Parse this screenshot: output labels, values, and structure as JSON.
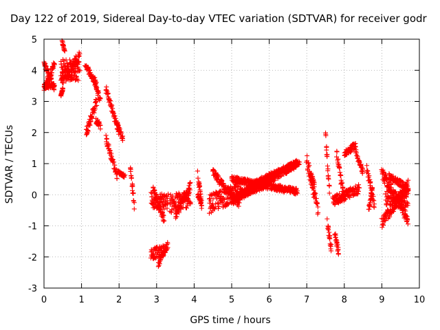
{
  "chart_data": {
    "type": "scatter",
    "title": "Day 122 of 2019, Sidereal Day-to-day VTEC variation (SDTVAR) for receiver godr",
    "xlabel": "GPS time / hours",
    "ylabel": "SDTVAR / TECUs",
    "xlim": [
      0,
      10
    ],
    "ylim": [
      -3,
      5
    ],
    "x_ticks": [
      "0",
      "1",
      "2",
      "3",
      "4",
      "5",
      "6",
      "7",
      "8",
      "9",
      "10"
    ],
    "y_ticks": [
      "-3",
      "-2",
      "-1",
      "0",
      "1",
      "2",
      "3",
      "4",
      "5"
    ],
    "grid": true,
    "marker": "+",
    "color": "#ff0000",
    "series": [
      {
        "name": "SDTVAR",
        "segments": [
          {
            "t0": 0.0,
            "t1": 0.28,
            "v0": 3.4,
            "v1": 4.2,
            "spread": 0.25
          },
          {
            "t0": 0.0,
            "t1": 0.28,
            "v0": 4.2,
            "v1": 3.4,
            "spread": 0.25
          },
          {
            "t0": 0.0,
            "t1": 0.28,
            "v0": 3.45,
            "v1": 3.5,
            "spread": 0.1
          },
          {
            "t0": 0.45,
            "t1": 0.95,
            "v0": 4.0,
            "v1": 4.0,
            "spread": 0.7
          },
          {
            "t0": 0.45,
            "t1": 0.95,
            "v0": 3.7,
            "v1": 4.4,
            "spread": 0.4
          },
          {
            "t0": 0.48,
            "t1": 0.55,
            "v0": 4.95,
            "v1": 4.6,
            "spread": 0.1
          },
          {
            "t0": 0.45,
            "t1": 0.5,
            "v0": 3.2,
            "v1": 3.4,
            "spread": 0.1
          },
          {
            "t0": 1.1,
            "t1": 1.4,
            "v0": 4.2,
            "v1": 3.5,
            "spread": 0.2
          },
          {
            "t0": 1.12,
            "t1": 1.4,
            "v0": 2.0,
            "v1": 3.0,
            "spread": 0.3
          },
          {
            "t0": 1.35,
            "t1": 1.5,
            "v0": 3.7,
            "v1": 3.0,
            "spread": 0.25
          },
          {
            "t0": 1.38,
            "t1": 1.5,
            "v0": 2.4,
            "v1": 2.2,
            "spread": 0.2
          },
          {
            "t0": 1.65,
            "t1": 2.0,
            "v0": 3.4,
            "v1": 2.0,
            "spread": 0.25
          },
          {
            "t0": 1.65,
            "t1": 1.95,
            "v0": 1.8,
            "v1": 0.6,
            "spread": 0.25
          },
          {
            "t0": 1.95,
            "t1": 2.1,
            "v0": 2.3,
            "v1": 1.8,
            "spread": 0.15
          },
          {
            "t0": 1.95,
            "t1": 2.15,
            "v0": 0.75,
            "v1": 0.6,
            "spread": 0.1
          },
          {
            "t0": 2.3,
            "t1": 2.4,
            "v0": 0.9,
            "v1": -0.3,
            "spread": 0.25
          },
          {
            "t0": 2.85,
            "t1": 3.3,
            "v0": -0.2,
            "v1": -0.2,
            "spread": 0.55
          },
          {
            "t0": 2.9,
            "t1": 3.2,
            "v0": 0.2,
            "v1": -0.8,
            "spread": 0.25
          },
          {
            "t0": 2.85,
            "t1": 3.2,
            "v0": -1.9,
            "v1": -1.8,
            "spread": 0.35
          },
          {
            "t0": 3.05,
            "t1": 3.3,
            "v0": -2.2,
            "v1": -1.6,
            "spread": 0.2
          },
          {
            "t0": 3.35,
            "t1": 3.9,
            "v0": -0.3,
            "v1": -0.1,
            "spread": 0.6
          },
          {
            "t0": 3.5,
            "t1": 3.9,
            "v0": -0.7,
            "v1": 0.3,
            "spread": 0.3
          },
          {
            "t0": 4.1,
            "t1": 4.2,
            "v0": 0.6,
            "v1": -0.3,
            "spread": 0.25
          },
          {
            "t0": 4.1,
            "t1": 4.2,
            "v0": 0.0,
            "v1": -0.4,
            "spread": 0.15
          },
          {
            "t0": 4.4,
            "t1": 5.2,
            "v0": -0.3,
            "v1": 0.1,
            "spread": 0.6
          },
          {
            "t0": 4.5,
            "t1": 5.2,
            "v0": 0.7,
            "v1": -0.3,
            "spread": 0.25
          },
          {
            "t0": 5.0,
            "t1": 6.75,
            "v0": -0.2,
            "v1": 1.0,
            "spread": 0.25
          },
          {
            "t0": 5.0,
            "t1": 6.75,
            "v0": 0.5,
            "v1": 0.1,
            "spread": 0.2
          },
          {
            "t0": 5.5,
            "t1": 6.8,
            "v0": 0.3,
            "v1": 1.05,
            "spread": 0.2
          },
          {
            "t0": 5.1,
            "t1": 6.0,
            "v0": 0.0,
            "v1": 0.4,
            "spread": 0.3
          },
          {
            "t0": 7.0,
            "t1": 7.3,
            "v0": 1.1,
            "v1": -0.5,
            "spread": 0.4
          },
          {
            "t0": 7.1,
            "t1": 7.2,
            "v0": 0.6,
            "v1": 0.4,
            "spread": 0.3
          },
          {
            "t0": 7.5,
            "t1": 7.6,
            "v0": 1.9,
            "v1": 0.2,
            "spread": 0.3
          },
          {
            "t0": 7.55,
            "t1": 7.65,
            "v0": -0.9,
            "v1": -1.7,
            "spread": 0.3
          },
          {
            "t0": 7.75,
            "t1": 7.85,
            "v0": -1.2,
            "v1": -1.9,
            "spread": 0.25
          },
          {
            "t0": 7.8,
            "t1": 8.0,
            "v0": 1.3,
            "v1": -0.2,
            "spread": 0.3
          },
          {
            "t0": 7.7,
            "t1": 8.4,
            "v0": -0.2,
            "v1": 0.2,
            "spread": 0.3
          },
          {
            "t0": 8.0,
            "t1": 8.3,
            "v0": 1.3,
            "v1": 1.6,
            "spread": 0.2
          },
          {
            "t0": 8.3,
            "t1": 8.5,
            "v0": 1.4,
            "v1": 0.7,
            "spread": 0.2
          },
          {
            "t0": 8.6,
            "t1": 8.8,
            "v0": 0.8,
            "v1": -0.3,
            "spread": 0.3
          },
          {
            "t0": 8.65,
            "t1": 8.75,
            "v0": -0.5,
            "v1": 0.2,
            "spread": 0.2
          },
          {
            "t0": 9.0,
            "t1": 9.7,
            "v0": -0.9,
            "v1": 0.3,
            "spread": 0.35
          },
          {
            "t0": 9.0,
            "t1": 9.7,
            "v0": 0.7,
            "v1": -0.8,
            "spread": 0.35
          },
          {
            "t0": 9.1,
            "t1": 9.7,
            "v0": -0.1,
            "v1": -0.2,
            "spread": 0.5
          },
          {
            "t0": 9.2,
            "t1": 9.7,
            "v0": 0.6,
            "v1": 0.2,
            "spread": 0.2
          }
        ]
      }
    ]
  }
}
